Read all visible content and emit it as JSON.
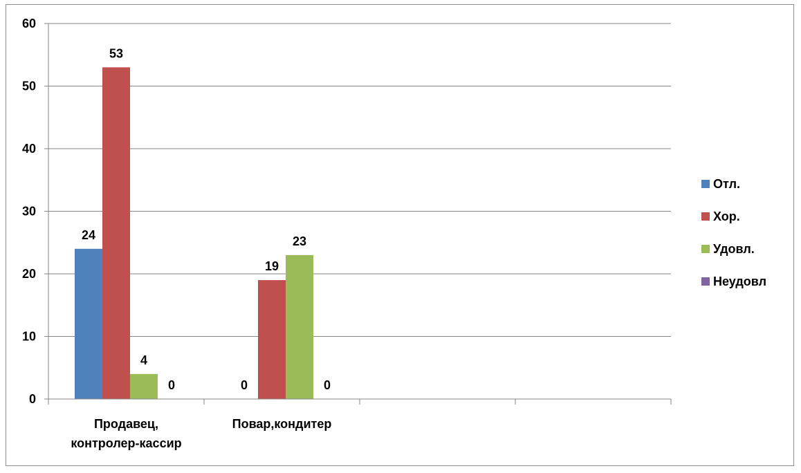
{
  "chart_data": {
    "type": "bar",
    "title": "",
    "xlabel": "",
    "ylabel": "",
    "categories": [
      "Продавец, контролер-кассир",
      "Повар,кондитер",
      "",
      ""
    ],
    "category_lines": [
      [
        "Продавец,",
        "контролер-кассир"
      ],
      [
        "Повар,кондитер"
      ],
      [],
      []
    ],
    "series": [
      {
        "name": "Отл.",
        "color": "#4F81BD",
        "values": [
          24,
          0,
          null,
          null
        ]
      },
      {
        "name": "Хор.",
        "color": "#C0504D",
        "values": [
          53,
          19,
          null,
          null
        ]
      },
      {
        "name": "Удовл.",
        "color": "#9BBB59",
        "values": [
          4,
          23,
          null,
          null
        ]
      },
      {
        "name": "Неудовл",
        "color": "#8064A2",
        "values": [
          0,
          0,
          null,
          null
        ]
      }
    ],
    "ylim": [
      0,
      60
    ],
    "yticks": [
      0,
      10,
      20,
      30,
      40,
      50,
      60
    ],
    "grid": true,
    "data_labels": true,
    "legend_position": "right"
  }
}
